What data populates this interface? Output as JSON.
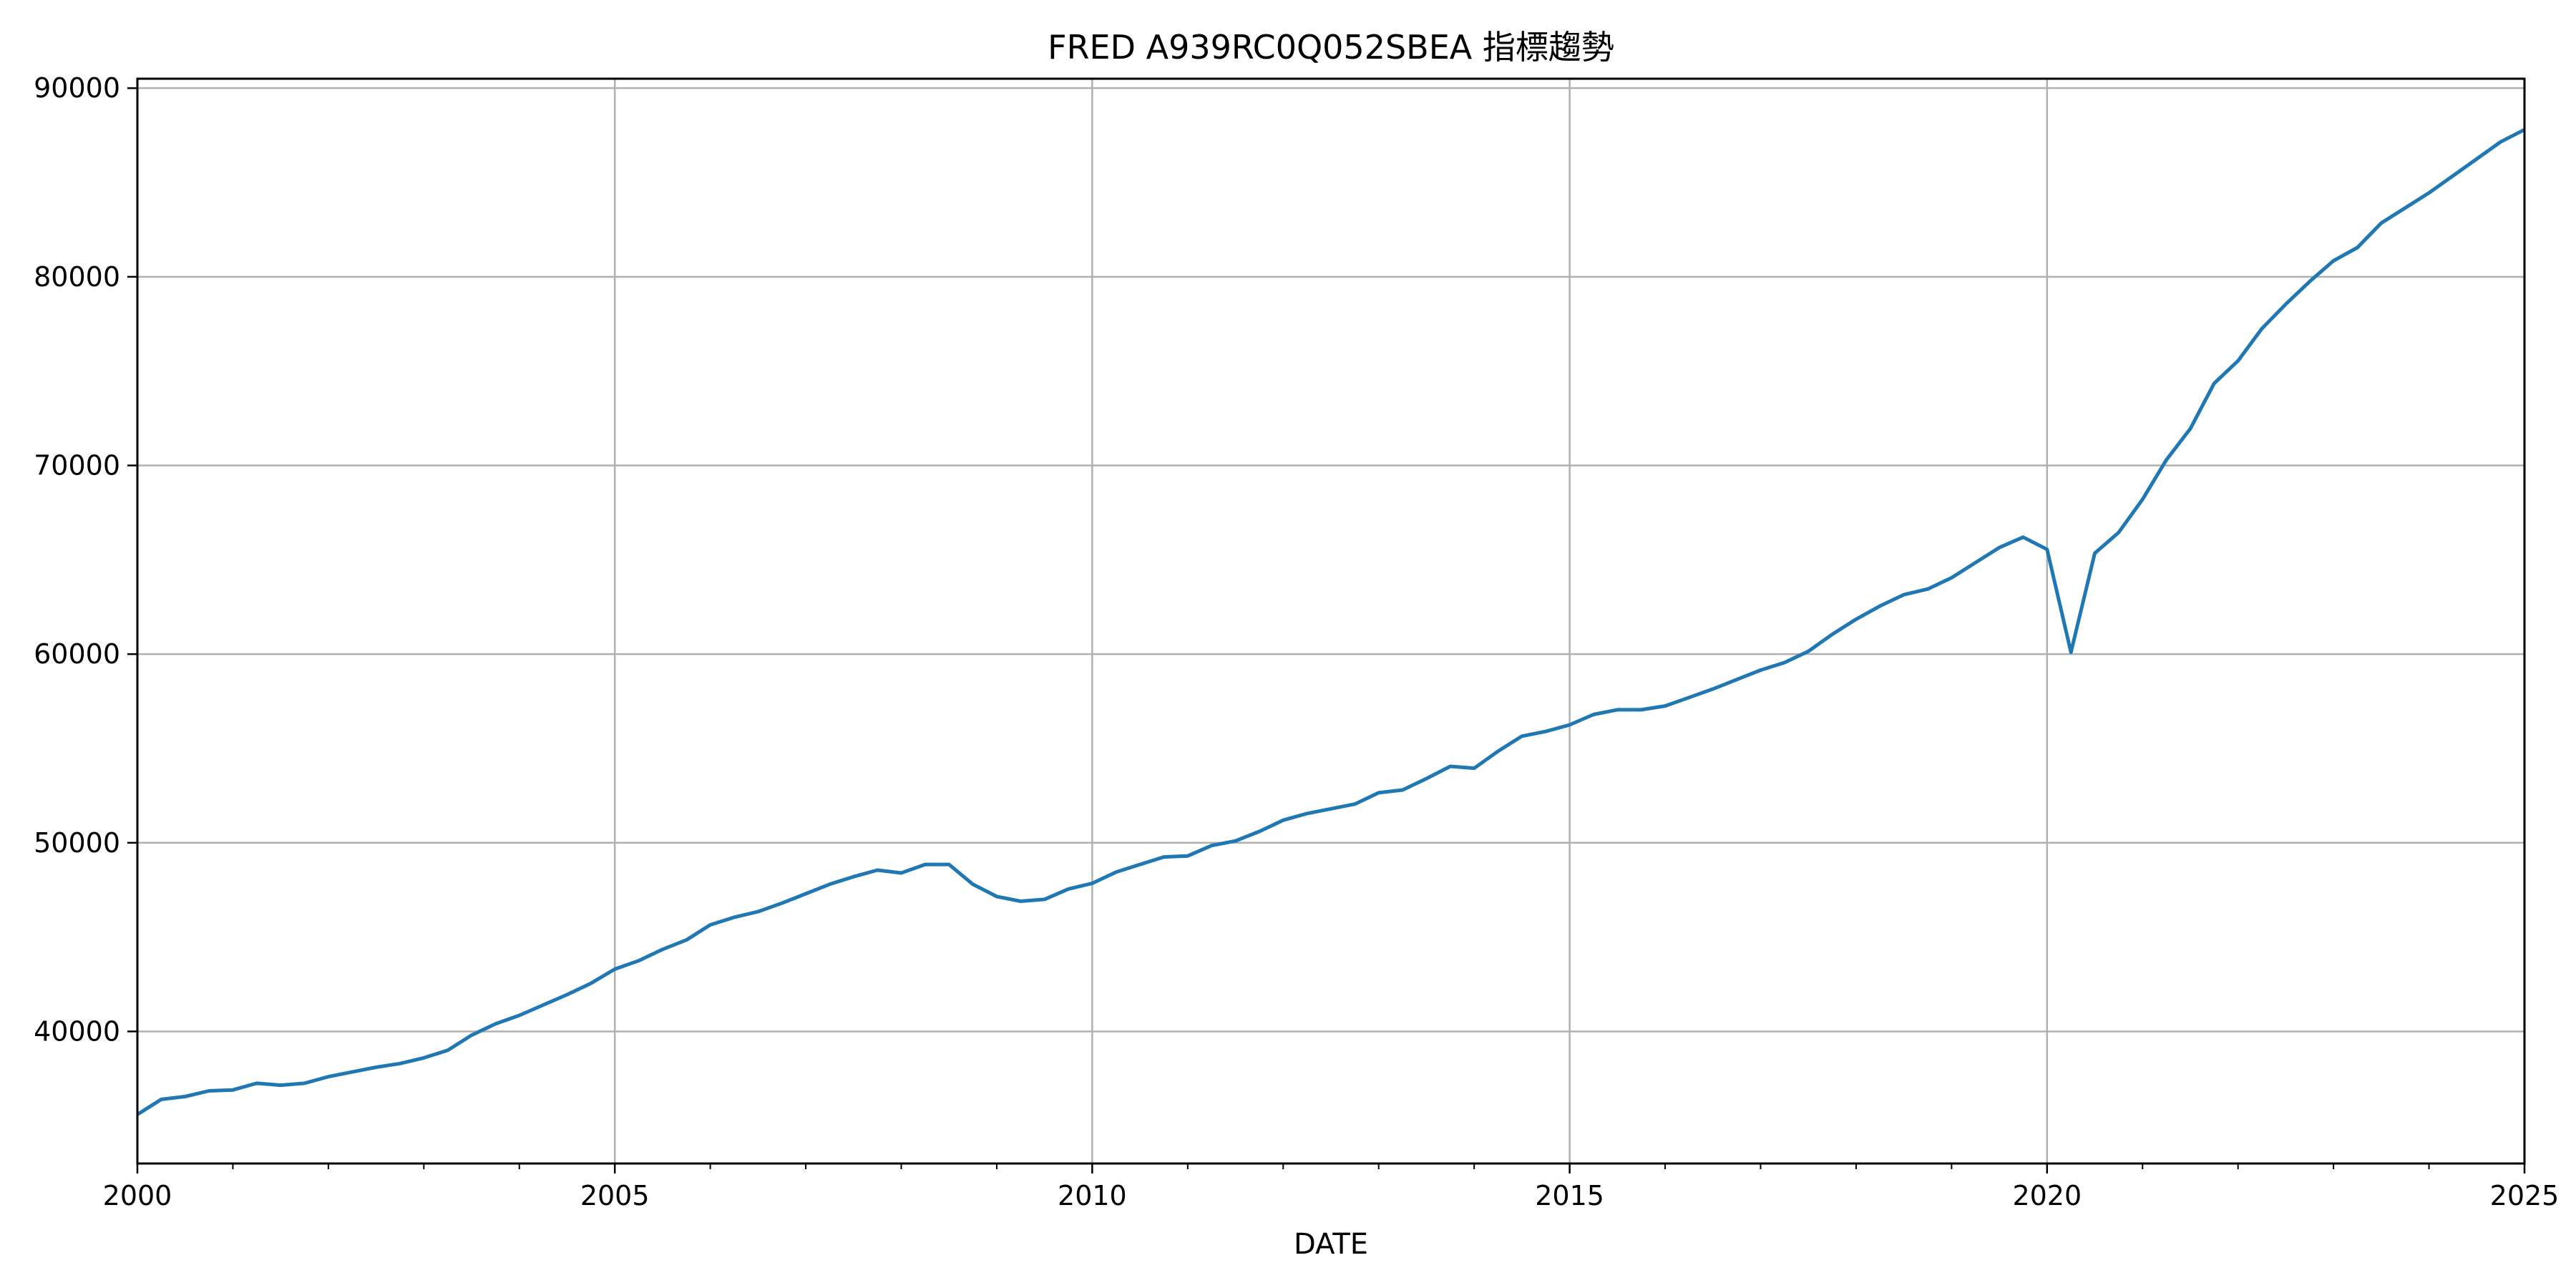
{
  "chart_data": {
    "type": "line",
    "title": "FRED A939RC0Q052SBEA 指標趨勢",
    "xlabel": "DATE",
    "ylabel": "",
    "xlim": [
      2000,
      2025
    ],
    "ylim": [
      33000,
      90500
    ],
    "x_ticks": [
      2000,
      2005,
      2010,
      2015,
      2020,
      2025
    ],
    "y_ticks": [
      40000,
      50000,
      60000,
      70000,
      80000,
      90000
    ],
    "grid": true,
    "color": "#1f77b4",
    "series": [
      {
        "x": [
          2000.0,
          2000.25,
          2000.5,
          2000.75,
          2001.0,
          2001.25,
          2001.5,
          2001.75,
          2002.0,
          2002.25,
          2002.5,
          2002.75,
          2003.0,
          2003.25,
          2003.5,
          2003.75,
          2004.0,
          2004.25,
          2004.5,
          2004.75,
          2005.0,
          2005.25,
          2005.5,
          2005.75,
          2006.0,
          2006.25,
          2006.5,
          2006.75,
          2007.0,
          2007.25,
          2007.5,
          2007.75,
          2008.0,
          2008.25,
          2008.5,
          2008.75,
          2009.0,
          2009.25,
          2009.5,
          2009.75,
          2010.0,
          2010.25,
          2010.5,
          2010.75,
          2011.0,
          2011.25,
          2011.5,
          2011.75,
          2012.0,
          2012.25,
          2012.5,
          2012.75,
          2013.0,
          2013.25,
          2013.5,
          2013.75,
          2014.0,
          2014.25,
          2014.5,
          2014.75,
          2015.0,
          2015.25,
          2015.5,
          2015.75,
          2016.0,
          2016.25,
          2016.5,
          2016.75,
          2017.0,
          2017.25,
          2017.5,
          2017.75,
          2018.0,
          2018.25,
          2018.5,
          2018.75,
          2019.0,
          2019.25,
          2019.5,
          2019.75,
          2020.0,
          2020.25,
          2020.5,
          2020.75,
          2021.0,
          2021.25,
          2021.5,
          2021.75,
          2022.0,
          2022.25,
          2022.5,
          2022.75,
          2023.0,
          2023.25,
          2023.5,
          2023.75,
          2024.0,
          2024.25,
          2024.5,
          2024.75,
          2025.0
        ],
        "values": [
          35600,
          36400,
          36550,
          36850,
          36900,
          37250,
          37150,
          37250,
          37600,
          37850,
          38100,
          38300,
          38600,
          39000,
          39800,
          40400,
          40850,
          41400,
          41950,
          42550,
          43300,
          43750,
          44350,
          44850,
          45650,
          46050,
          46350,
          46800,
          47300,
          47800,
          48200,
          48550,
          48400,
          48850,
          48850,
          47800,
          47150,
          46900,
          47000,
          47550,
          47850,
          48450,
          48850,
          49250,
          49300,
          49850,
          50100,
          50600,
          51200,
          51550,
          51800,
          52050,
          52650,
          52800,
          53400,
          54050,
          53950,
          54850,
          55650,
          55900,
          56250,
          56800,
          57050,
          57050,
          57250,
          57700,
          58150,
          58650,
          59150,
          59550,
          60150,
          61050,
          61850,
          62550,
          63150,
          63450,
          64050,
          64850,
          65650,
          66200,
          65550,
          60100,
          65350,
          66450,
          68200,
          70300,
          71950,
          74350,
          75550,
          77250,
          78550,
          79750,
          80850,
          81550,
          82850,
          83650,
          84450,
          85350,
          86250,
          87150,
          87800
        ]
      }
    ]
  }
}
